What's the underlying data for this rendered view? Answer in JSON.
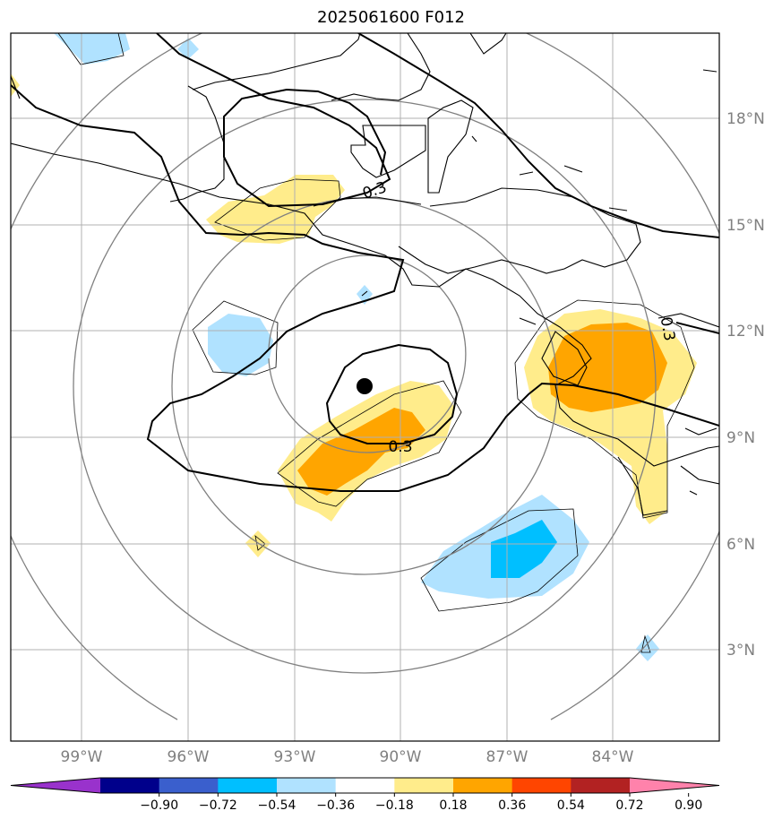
{
  "title": "2025061600 F012",
  "map": {
    "lat_labels": [
      "18°N",
      "15°N",
      "12°N",
      "9°N",
      "6°N",
      "3°N"
    ],
    "lon_labels": [
      "99°W",
      "96°W",
      "93°W",
      "90°W",
      "87°W",
      "84°W"
    ],
    "contour_labels": [
      "0.3",
      "0.3",
      "0.3"
    ],
    "center_marker": "storm-center"
  },
  "colorbar": {
    "levels": [
      "−0.90",
      "−0.72",
      "−0.54",
      "−0.36",
      "−0.18",
      "0.18",
      "0.36",
      "0.54",
      "0.72",
      "0.90"
    ],
    "colors": [
      "#9932cc",
      "#00008b",
      "#3a5fcd",
      "#00bfff",
      "#b0e2ff",
      "#ffffff",
      "#ffec8b",
      "#ffa500",
      "#ff4500",
      "#b22222",
      "#ff82ab"
    ]
  }
}
